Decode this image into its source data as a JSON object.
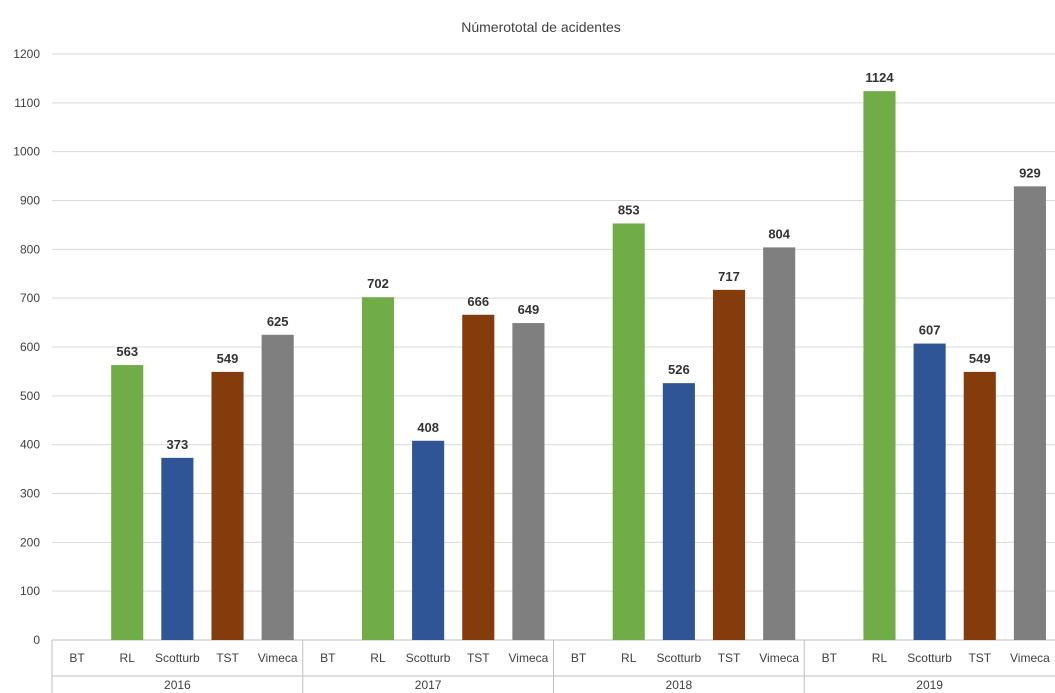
{
  "chart_data": {
    "type": "bar",
    "title": "Númerototal de acidentes",
    "xlabel": "",
    "ylabel": "",
    "ylim": [
      0,
      1200
    ],
    "yticks": [
      0,
      100,
      200,
      300,
      400,
      500,
      600,
      700,
      800,
      900,
      1000,
      1100,
      1200
    ],
    "grid": true,
    "legend": "none",
    "categories": [
      "BT",
      "RL",
      "Scotturb",
      "TST",
      "Vimeca"
    ],
    "category_colors": {
      "BT": "#4472c4",
      "RL": "#70ad47",
      "Scotturb": "#2f5597",
      "TST": "#843c0c",
      "Vimeca": "#7f7f7f"
    },
    "groups": [
      {
        "name": "2016",
        "values": [
          null,
          563,
          373,
          549,
          625
        ]
      },
      {
        "name": "2017",
        "values": [
          null,
          702,
          408,
          666,
          649
        ]
      },
      {
        "name": "2018",
        "values": [
          null,
          853,
          526,
          717,
          804
        ]
      },
      {
        "name": "2019",
        "values": [
          null,
          1124,
          607,
          549,
          929
        ]
      }
    ]
  }
}
